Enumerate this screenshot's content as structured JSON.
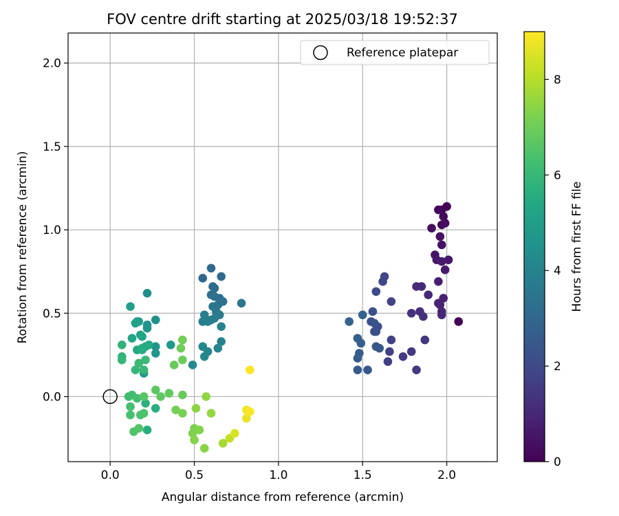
{
  "chart_data": {
    "type": "scatter",
    "title": "FOV centre drift starting at 2025/03/18 19:52:37",
    "xlabel": "Angular distance from reference (arcmin)",
    "ylabel": "Rotation from reference (arcmin)",
    "xlim": [
      -0.25,
      2.3
    ],
    "ylim": [
      -0.39,
      2.18
    ],
    "xticks": [
      0.0,
      0.5,
      1.0,
      1.5,
      2.0
    ],
    "yticks": [
      0.0,
      0.5,
      1.0,
      1.5,
      2.0
    ],
    "tick_labels_x": [
      "0.0",
      "0.5",
      "1.0",
      "1.5",
      "2.0"
    ],
    "tick_labels_y": [
      "0.0",
      "0.5",
      "1.0",
      "1.5",
      "2.0"
    ],
    "grid": true,
    "legend": {
      "placement": "top-right",
      "entries": [
        {
          "label": "Reference platepar",
          "marker": "open-circle"
        }
      ]
    },
    "reference_point": {
      "x": 0.0,
      "y": 0.0
    },
    "colorbar": {
      "label": "Hours from first FF file",
      "colormap": "viridis",
      "range": [
        0,
        9
      ],
      "ticks": [
        0,
        2,
        4,
        6,
        8
      ],
      "tick_labels": [
        "0",
        "2",
        "4",
        "6",
        "8"
      ]
    },
    "colors": {
      "viridis": [
        "#440154",
        "#482475",
        "#414487",
        "#355f8d",
        "#2a788e",
        "#21918c",
        "#22a884",
        "#44bf70",
        "#7ad151",
        "#bddf26",
        "#fde725"
      ],
      "grid": "#b0b0b0",
      "axis": "#000000"
    },
    "points": [
      {
        "x": 2.07,
        "y": 0.45,
        "h": 0.0
      },
      {
        "x": 2.0,
        "y": 1.14,
        "h": 0.05
      },
      {
        "x": 1.97,
        "y": 1.12,
        "h": 0.1
      },
      {
        "x": 1.95,
        "y": 1.12,
        "h": 0.15
      },
      {
        "x": 1.98,
        "y": 1.08,
        "h": 0.2
      },
      {
        "x": 1.97,
        "y": 1.03,
        "h": 0.25
      },
      {
        "x": 1.99,
        "y": 1.04,
        "h": 0.3
      },
      {
        "x": 1.91,
        "y": 1.01,
        "h": 0.35
      },
      {
        "x": 1.96,
        "y": 0.96,
        "h": 0.4
      },
      {
        "x": 1.97,
        "y": 0.91,
        "h": 0.45
      },
      {
        "x": 1.93,
        "y": 0.85,
        "h": 0.5
      },
      {
        "x": 1.94,
        "y": 0.82,
        "h": 0.55
      },
      {
        "x": 2.01,
        "y": 0.82,
        "h": 0.6
      },
      {
        "x": 1.97,
        "y": 0.81,
        "h": 0.65
      },
      {
        "x": 1.99,
        "y": 0.76,
        "h": 0.7
      },
      {
        "x": 1.95,
        "y": 0.69,
        "h": 0.75
      },
      {
        "x": 1.98,
        "y": 0.59,
        "h": 0.8
      },
      {
        "x": 1.95,
        "y": 0.56,
        "h": 0.85
      },
      {
        "x": 1.96,
        "y": 0.55,
        "h": 0.9
      },
      {
        "x": 1.97,
        "y": 0.51,
        "h": 0.95
      },
      {
        "x": 1.97,
        "y": 0.49,
        "h": 1.0
      },
      {
        "x": 1.89,
        "y": 0.61,
        "h": 1.05
      },
      {
        "x": 1.85,
        "y": 0.66,
        "h": 1.1
      },
      {
        "x": 1.82,
        "y": 0.66,
        "h": 1.15
      },
      {
        "x": 1.84,
        "y": 0.51,
        "h": 1.2
      },
      {
        "x": 1.86,
        "y": 0.48,
        "h": 1.25
      },
      {
        "x": 1.79,
        "y": 0.5,
        "h": 1.3
      },
      {
        "x": 1.87,
        "y": 0.34,
        "h": 1.4
      },
      {
        "x": 1.82,
        "y": 0.16,
        "h": 1.45
      },
      {
        "x": 1.79,
        "y": 0.27,
        "h": 1.5
      },
      {
        "x": 1.74,
        "y": 0.24,
        "h": 1.6
      },
      {
        "x": 1.65,
        "y": 0.21,
        "h": 1.65
      },
      {
        "x": 1.66,
        "y": 0.27,
        "h": 1.7
      },
      {
        "x": 1.67,
        "y": 0.34,
        "h": 1.75
      },
      {
        "x": 1.67,
        "y": 0.57,
        "h": 1.8
      },
      {
        "x": 1.63,
        "y": 0.72,
        "h": 1.85
      },
      {
        "x": 1.62,
        "y": 0.69,
        "h": 1.9
      },
      {
        "x": 1.58,
        "y": 0.63,
        "h": 2.0
      },
      {
        "x": 1.59,
        "y": 0.42,
        "h": 2.05
      },
      {
        "x": 1.57,
        "y": 0.39,
        "h": 2.1
      },
      {
        "x": 1.58,
        "y": 0.39,
        "h": 2.15
      },
      {
        "x": 1.55,
        "y": 0.45,
        "h": 2.2
      },
      {
        "x": 1.56,
        "y": 0.51,
        "h": 2.25
      },
      {
        "x": 1.57,
        "y": 0.44,
        "h": 2.3
      },
      {
        "x": 1.58,
        "y": 0.3,
        "h": 2.35
      },
      {
        "x": 1.6,
        "y": 0.29,
        "h": 2.4
      },
      {
        "x": 1.53,
        "y": 0.16,
        "h": 2.45
      },
      {
        "x": 1.47,
        "y": 0.16,
        "h": 2.55
      },
      {
        "x": 1.47,
        "y": 0.23,
        "h": 2.6
      },
      {
        "x": 1.48,
        "y": 0.26,
        "h": 2.65
      },
      {
        "x": 1.49,
        "y": 0.32,
        "h": 2.7
      },
      {
        "x": 1.47,
        "y": 0.35,
        "h": 2.75
      },
      {
        "x": 1.42,
        "y": 0.45,
        "h": 2.8
      },
      {
        "x": 1.5,
        "y": 0.49,
        "h": 2.85
      },
      {
        "x": 0.55,
        "y": 0.71,
        "h": 3.0
      },
      {
        "x": 0.6,
        "y": 0.77,
        "h": 3.05
      },
      {
        "x": 0.66,
        "y": 0.72,
        "h": 3.1
      },
      {
        "x": 0.61,
        "y": 0.66,
        "h": 3.15
      },
      {
        "x": 0.62,
        "y": 0.65,
        "h": 3.2
      },
      {
        "x": 0.6,
        "y": 0.61,
        "h": 3.25
      },
      {
        "x": 0.62,
        "y": 0.6,
        "h": 3.3
      },
      {
        "x": 0.65,
        "y": 0.59,
        "h": 3.35
      },
      {
        "x": 0.67,
        "y": 0.57,
        "h": 3.4
      },
      {
        "x": 0.64,
        "y": 0.55,
        "h": 3.45
      },
      {
        "x": 0.61,
        "y": 0.54,
        "h": 3.5
      },
      {
        "x": 0.78,
        "y": 0.56,
        "h": 3.55
      },
      {
        "x": 0.63,
        "y": 0.51,
        "h": 3.6
      },
      {
        "x": 0.65,
        "y": 0.49,
        "h": 3.65
      },
      {
        "x": 0.62,
        "y": 0.47,
        "h": 3.7
      },
      {
        "x": 0.6,
        "y": 0.46,
        "h": 3.75
      },
      {
        "x": 0.56,
        "y": 0.49,
        "h": 3.8
      },
      {
        "x": 0.55,
        "y": 0.45,
        "h": 3.85
      },
      {
        "x": 0.58,
        "y": 0.45,
        "h": 3.9
      },
      {
        "x": 0.66,
        "y": 0.42,
        "h": 3.95
      },
      {
        "x": 0.66,
        "y": 0.33,
        "h": 4.0
      },
      {
        "x": 0.64,
        "y": 0.29,
        "h": 4.05
      },
      {
        "x": 0.58,
        "y": 0.27,
        "h": 4.1
      },
      {
        "x": 0.55,
        "y": 0.3,
        "h": 4.15
      },
      {
        "x": 0.56,
        "y": 0.24,
        "h": 4.2
      },
      {
        "x": 0.49,
        "y": 0.19,
        "h": 4.25
      },
      {
        "x": 0.22,
        "y": 0.62,
        "h": 4.4
      },
      {
        "x": 0.27,
        "y": 0.46,
        "h": 4.5
      },
      {
        "x": 0.22,
        "y": 0.43,
        "h": 4.55
      },
      {
        "x": 0.22,
        "y": 0.41,
        "h": 4.6
      },
      {
        "x": 0.27,
        "y": 0.3,
        "h": 4.65
      },
      {
        "x": 0.27,
        "y": 0.26,
        "h": 4.7
      },
      {
        "x": 0.2,
        "y": 0.14,
        "h": 4.75
      },
      {
        "x": 0.36,
        "y": 0.31,
        "h": 4.8
      },
      {
        "x": 0.12,
        "y": 0.54,
        "h": 5.0
      },
      {
        "x": 0.16,
        "y": 0.45,
        "h": 5.05
      },
      {
        "x": 0.17,
        "y": 0.45,
        "h": 5.1
      },
      {
        "x": 0.15,
        "y": 0.44,
        "h": 5.15
      },
      {
        "x": 0.18,
        "y": 0.37,
        "h": 5.2
      },
      {
        "x": 0.13,
        "y": 0.35,
        "h": 5.25
      },
      {
        "x": 0.19,
        "y": 0.36,
        "h": 5.3
      },
      {
        "x": 0.19,
        "y": 0.29,
        "h": 5.35
      },
      {
        "x": 0.16,
        "y": 0.28,
        "h": 5.4
      },
      {
        "x": 0.23,
        "y": 0.31,
        "h": 5.45
      },
      {
        "x": 0.21,
        "y": 0.3,
        "h": 5.5
      },
      {
        "x": 0.19,
        "y": 0.28,
        "h": 5.55
      },
      {
        "x": 0.27,
        "y": -0.07,
        "h": 5.6
      },
      {
        "x": 0.22,
        "y": -0.2,
        "h": 5.65
      },
      {
        "x": 0.21,
        "y": -0.04,
        "h": 5.7
      },
      {
        "x": 0.07,
        "y": 0.31,
        "h": 5.8
      },
      {
        "x": 0.07,
        "y": 0.24,
        "h": 5.85
      },
      {
        "x": 0.07,
        "y": 0.22,
        "h": 5.9
      },
      {
        "x": 0.15,
        "y": 0.16,
        "h": 5.95
      },
      {
        "x": 0.2,
        "y": 0.16,
        "h": 6.0
      },
      {
        "x": 0.21,
        "y": 0.22,
        "h": 6.05
      },
      {
        "x": 0.17,
        "y": 0.2,
        "h": 6.1
      },
      {
        "x": 0.11,
        "y": 0.0,
        "h": 6.15
      },
      {
        "x": 0.13,
        "y": 0.01,
        "h": 6.2
      },
      {
        "x": 0.16,
        "y": -0.01,
        "h": 6.25
      },
      {
        "x": 0.12,
        "y": -0.06,
        "h": 6.3
      },
      {
        "x": 0.12,
        "y": -0.11,
        "h": 6.35
      },
      {
        "x": 0.18,
        "y": -0.11,
        "h": 6.4
      },
      {
        "x": 0.2,
        "y": -0.1,
        "h": 6.45
      },
      {
        "x": 0.14,
        "y": -0.21,
        "h": 6.5
      },
      {
        "x": 0.17,
        "y": -0.19,
        "h": 6.55
      },
      {
        "x": 0.2,
        "y": 0.0,
        "h": 6.6
      },
      {
        "x": 0.27,
        "y": 0.04,
        "h": 6.7
      },
      {
        "x": 0.3,
        "y": 0.0,
        "h": 6.75
      },
      {
        "x": 0.35,
        "y": 0.02,
        "h": 6.8
      },
      {
        "x": 0.43,
        "y": 0.01,
        "h": 6.85
      },
      {
        "x": 0.38,
        "y": 0.19,
        "h": 6.9
      },
      {
        "x": 0.43,
        "y": 0.22,
        "h": 6.95
      },
      {
        "x": 0.42,
        "y": 0.29,
        "h": 7.0
      },
      {
        "x": 0.43,
        "y": 0.34,
        "h": 7.05
      },
      {
        "x": 0.39,
        "y": -0.08,
        "h": 7.1
      },
      {
        "x": 0.43,
        "y": -0.1,
        "h": 7.15
      },
      {
        "x": 0.5,
        "y": -0.19,
        "h": 7.2
      },
      {
        "x": 0.49,
        "y": -0.22,
        "h": 7.25
      },
      {
        "x": 0.53,
        "y": -0.2,
        "h": 7.3
      },
      {
        "x": 0.5,
        "y": -0.26,
        "h": 7.35
      },
      {
        "x": 0.56,
        "y": -0.31,
        "h": 7.4
      },
      {
        "x": 0.51,
        "y": -0.07,
        "h": 7.45
      },
      {
        "x": 0.57,
        "y": 0.0,
        "h": 7.5
      },
      {
        "x": 0.6,
        "y": -0.1,
        "h": 7.55
      },
      {
        "x": 0.67,
        "y": -0.28,
        "h": 7.8
      },
      {
        "x": 0.71,
        "y": -0.25,
        "h": 8.2
      },
      {
        "x": 0.74,
        "y": -0.22,
        "h": 8.5
      },
      {
        "x": 0.81,
        "y": -0.13,
        "h": 8.7
      },
      {
        "x": 0.81,
        "y": -0.08,
        "h": 8.8
      },
      {
        "x": 0.82,
        "y": -0.09,
        "h": 8.9
      },
      {
        "x": 0.83,
        "y": -0.09,
        "h": 8.95
      },
      {
        "x": 0.83,
        "y": 0.16,
        "h": 9.0
      }
    ]
  }
}
